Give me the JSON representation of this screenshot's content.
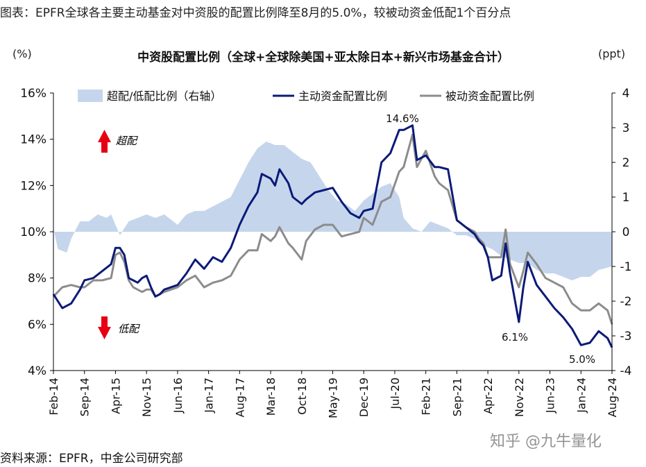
{
  "header": {
    "title": "图表：EPFR全球各主要主动基金对中资股的配置比例降至8月的5.0%，较被动资金低配1个百分点"
  },
  "footer": {
    "source": "资料来源：EPFR，中金公司研究部",
    "watermark": "知乎 @九牛量化"
  },
  "colors": {
    "active": "#0b1a78",
    "passive": "#8c8c8c",
    "area": "#c5d5ec",
    "arrow": "#e60012"
  },
  "chart_data": {
    "type": "line",
    "title": "中资股配置比例（全球+全球除美国+亚太除日本+新兴市场基金合计）",
    "ylabel_left": "(%)",
    "ylabel_right": "(ppt)",
    "ylim_left": [
      4,
      16
    ],
    "ylim_right": [
      -4,
      4
    ],
    "yticks_left": [
      "4%",
      "6%",
      "8%",
      "10%",
      "12%",
      "14%",
      "16%"
    ],
    "yticks_right": [
      "-4",
      "-3",
      "-2",
      "-1",
      "0",
      "1",
      "2",
      "3",
      "4"
    ],
    "x_tick_labels": [
      "Feb-14",
      "Sep-14",
      "Apr-15",
      "Nov-15",
      "Jun-16",
      "Jan-17",
      "Aug-17",
      "Mar-18",
      "Oct-18",
      "May-19",
      "Dec-19",
      "Jul-20",
      "Feb-21",
      "Sep-21",
      "Apr-22",
      "Nov-22",
      "Jun-23",
      "Jan-24",
      "Aug-24"
    ],
    "x_start": "Feb-14",
    "x_end": "Aug-24",
    "legend_position": "top",
    "annotations": {
      "overweight": "超配",
      "underweight": "低配",
      "peak": "14.6%",
      "low_2022": "6.1%",
      "latest": "5.0%"
    },
    "series": [
      {
        "name": "超配/低配比例（右轴）",
        "kind": "area",
        "axis": "right",
        "points": [
          [
            "Feb-14",
            0.1
          ],
          [
            "Mar-14",
            -0.5
          ],
          [
            "May-14",
            -0.6
          ],
          [
            "Jun-14",
            -0.2
          ],
          [
            "Aug-14",
            0.3
          ],
          [
            "Oct-14",
            0.3
          ],
          [
            "Dec-14",
            0.5
          ],
          [
            "Feb-15",
            0.4
          ],
          [
            "Mar-15",
            0.5
          ],
          [
            "May-15",
            -0.1
          ],
          [
            "Jul-15",
            0.3
          ],
          [
            "Sep-15",
            0.4
          ],
          [
            "Nov-15",
            0.5
          ],
          [
            "Jan-16",
            0.4
          ],
          [
            "Mar-16",
            0.5
          ],
          [
            "Jun-16",
            0.2
          ],
          [
            "Aug-16",
            0.5
          ],
          [
            "Oct-16",
            0.6
          ],
          [
            "Dec-16",
            0.6
          ],
          [
            "Mar-17",
            0.8
          ],
          [
            "Jun-17",
            1.0
          ],
          [
            "Aug-17",
            1.5
          ],
          [
            "Oct-17",
            2.0
          ],
          [
            "Dec-17",
            2.4
          ],
          [
            "Feb-18",
            2.6
          ],
          [
            "Apr-18",
            2.5
          ],
          [
            "Jun-18",
            2.5
          ],
          [
            "Aug-18",
            2.3
          ],
          [
            "Oct-18",
            2.1
          ],
          [
            "Dec-18",
            2.0
          ],
          [
            "Feb-19",
            1.6
          ],
          [
            "Apr-19",
            1.2
          ],
          [
            "Jun-19",
            0.9
          ],
          [
            "Aug-19",
            0.8
          ],
          [
            "Oct-19",
            0.6
          ],
          [
            "Dec-19",
            0.9
          ],
          [
            "Feb-20",
            1.1
          ],
          [
            "Apr-20",
            1.3
          ],
          [
            "Jun-20",
            1.4
          ],
          [
            "Aug-20",
            1.0
          ],
          [
            "Sep-20",
            0.4
          ],
          [
            "Nov-20",
            0.1
          ],
          [
            "Jan-21",
            0.0
          ],
          [
            "Mar-21",
            0.3
          ],
          [
            "May-21",
            0.2
          ],
          [
            "Jul-21",
            0.1
          ],
          [
            "Sep-21",
            -0.1
          ],
          [
            "Nov-21",
            -0.1
          ],
          [
            "Jan-22",
            -0.2
          ],
          [
            "Mar-22",
            -0.4
          ],
          [
            "May-22",
            -0.5
          ],
          [
            "Jul-22",
            -0.7
          ],
          [
            "Sep-22",
            -0.8
          ],
          [
            "Nov-22",
            -0.9
          ],
          [
            "Jan-23",
            -0.9
          ],
          [
            "Mar-23",
            -1.1
          ],
          [
            "May-23",
            -1.2
          ],
          [
            "Jul-23",
            -1.2
          ],
          [
            "Sep-23",
            -1.3
          ],
          [
            "Nov-23",
            -1.4
          ],
          [
            "Jan-24",
            -1.3
          ],
          [
            "Mar-24",
            -1.3
          ],
          [
            "May-24",
            -1.1
          ],
          [
            "Aug-24",
            -1.0
          ]
        ]
      },
      {
        "name": "主动资金配置比例",
        "kind": "line",
        "axis": "left",
        "points": [
          [
            "Feb-14",
            7.3
          ],
          [
            "Apr-14",
            6.7
          ],
          [
            "Jun-14",
            6.9
          ],
          [
            "Aug-14",
            7.5
          ],
          [
            "Sep-14",
            7.9
          ],
          [
            "Nov-14",
            8.0
          ],
          [
            "Jan-15",
            8.3
          ],
          [
            "Mar-15",
            8.6
          ],
          [
            "Apr-15",
            9.3
          ],
          [
            "May-15",
            9.3
          ],
          [
            "Jun-15",
            9.0
          ],
          [
            "Jul-15",
            8.0
          ],
          [
            "Aug-15",
            7.9
          ],
          [
            "Sep-15",
            7.8
          ],
          [
            "Oct-15",
            8.0
          ],
          [
            "Nov-15",
            8.1
          ],
          [
            "Dec-15",
            7.6
          ],
          [
            "Jan-16",
            7.2
          ],
          [
            "Feb-16",
            7.3
          ],
          [
            "Mar-16",
            7.5
          ],
          [
            "Jun-16",
            7.7
          ],
          [
            "Aug-16",
            8.2
          ],
          [
            "Oct-16",
            8.8
          ],
          [
            "Dec-16",
            8.4
          ],
          [
            "Feb-17",
            8.9
          ],
          [
            "Apr-17",
            8.7
          ],
          [
            "Jun-17",
            9.3
          ],
          [
            "Aug-17",
            10.3
          ],
          [
            "Oct-17",
            11.1
          ],
          [
            "Dec-17",
            11.7
          ],
          [
            "Jan-18",
            12.5
          ],
          [
            "Mar-18",
            12.3
          ],
          [
            "Apr-18",
            12.0
          ],
          [
            "May-18",
            12.7
          ],
          [
            "Jul-18",
            12.1
          ],
          [
            "Aug-18",
            11.5
          ],
          [
            "Oct-18",
            11.2
          ],
          [
            "Nov-18",
            11.4
          ],
          [
            "Jan-19",
            11.7
          ],
          [
            "Mar-19",
            11.8
          ],
          [
            "May-19",
            11.9
          ],
          [
            "Jul-19",
            11.3
          ],
          [
            "Sep-19",
            10.8
          ],
          [
            "Nov-19",
            10.6
          ],
          [
            "Dec-19",
            10.9
          ],
          [
            "Feb-20",
            11.0
          ],
          [
            "Apr-20",
            13.0
          ],
          [
            "Jun-20",
            13.4
          ],
          [
            "Aug-20",
            14.4
          ],
          [
            "Sep-20",
            14.4
          ],
          [
            "Nov-20",
            14.6
          ],
          [
            "Dec-20",
            13.1
          ],
          [
            "Feb-21",
            13.3
          ],
          [
            "Apr-21",
            12.8
          ],
          [
            "May-21",
            12.8
          ],
          [
            "Jul-21",
            12.7
          ],
          [
            "Sep-21",
            10.5
          ],
          [
            "Nov-21",
            10.2
          ],
          [
            "Jan-22",
            9.9
          ],
          [
            "Feb-22",
            9.6
          ],
          [
            "Mar-22",
            9.4
          ],
          [
            "Apr-22",
            8.9
          ],
          [
            "May-22",
            7.9
          ],
          [
            "Jul-22",
            8.1
          ],
          [
            "Aug-22",
            9.5
          ],
          [
            "Sep-22",
            8.2
          ],
          [
            "Nov-22",
            6.1
          ],
          [
            "Dec-22",
            7.6
          ],
          [
            "Jan-23",
            8.7
          ],
          [
            "Mar-23",
            7.7
          ],
          [
            "May-23",
            7.2
          ],
          [
            "Jul-23",
            6.7
          ],
          [
            "Sep-23",
            6.3
          ],
          [
            "Nov-23",
            5.8
          ],
          [
            "Jan-24",
            5.1
          ],
          [
            "Mar-24",
            5.2
          ],
          [
            "May-24",
            5.7
          ],
          [
            "Jul-24",
            5.4
          ],
          [
            "Aug-24",
            5.0
          ]
        ]
      },
      {
        "name": "被动资金配置比例",
        "kind": "line",
        "axis": "left",
        "points": [
          [
            "Feb-14",
            7.2
          ],
          [
            "Apr-14",
            7.6
          ],
          [
            "Jun-14",
            7.7
          ],
          [
            "Aug-14",
            7.6
          ],
          [
            "Sep-14",
            7.6
          ],
          [
            "Nov-14",
            7.9
          ],
          [
            "Jan-15",
            7.9
          ],
          [
            "Mar-15",
            8.0
          ],
          [
            "Apr-15",
            9.0
          ],
          [
            "May-15",
            9.1
          ],
          [
            "Jun-15",
            8.7
          ],
          [
            "Jul-15",
            7.9
          ],
          [
            "Aug-15",
            7.6
          ],
          [
            "Sep-15",
            7.5
          ],
          [
            "Oct-15",
            7.4
          ],
          [
            "Nov-15",
            7.5
          ],
          [
            "Dec-15",
            7.5
          ],
          [
            "Jan-16",
            7.2
          ],
          [
            "Feb-16",
            7.3
          ],
          [
            "Mar-16",
            7.4
          ],
          [
            "Jun-16",
            7.6
          ],
          [
            "Aug-16",
            7.9
          ],
          [
            "Oct-16",
            8.1
          ],
          [
            "Dec-16",
            7.6
          ],
          [
            "Feb-17",
            7.8
          ],
          [
            "Apr-17",
            7.9
          ],
          [
            "Jun-17",
            8.1
          ],
          [
            "Aug-17",
            8.8
          ],
          [
            "Oct-17",
            9.2
          ],
          [
            "Dec-17",
            9.2
          ],
          [
            "Jan-18",
            9.9
          ],
          [
            "Mar-18",
            9.6
          ],
          [
            "Apr-18",
            9.8
          ],
          [
            "May-18",
            10.2
          ],
          [
            "Jul-18",
            9.5
          ],
          [
            "Aug-18",
            9.3
          ],
          [
            "Oct-18",
            8.8
          ],
          [
            "Nov-18",
            9.6
          ],
          [
            "Jan-19",
            10.1
          ],
          [
            "Mar-19",
            10.3
          ],
          [
            "May-19",
            10.3
          ],
          [
            "Jul-19",
            9.8
          ],
          [
            "Sep-19",
            9.9
          ],
          [
            "Nov-19",
            10.0
          ],
          [
            "Dec-19",
            10.6
          ],
          [
            "Feb-20",
            10.3
          ],
          [
            "Apr-20",
            11.3
          ],
          [
            "Jun-20",
            11.5
          ],
          [
            "Aug-20",
            12.6
          ],
          [
            "Sep-20",
            12.8
          ],
          [
            "Nov-20",
            14.2
          ],
          [
            "Dec-20",
            12.8
          ],
          [
            "Feb-21",
            13.5
          ],
          [
            "Apr-21",
            12.4
          ],
          [
            "May-21",
            12.1
          ],
          [
            "Jul-21",
            11.8
          ],
          [
            "Sep-21",
            10.5
          ],
          [
            "Nov-21",
            10.2
          ],
          [
            "Jan-22",
            10.0
          ],
          [
            "Feb-22",
            9.7
          ],
          [
            "Mar-22",
            9.5
          ],
          [
            "Apr-22",
            8.9
          ],
          [
            "May-22",
            8.9
          ],
          [
            "Jul-22",
            8.9
          ],
          [
            "Aug-22",
            10.1
          ],
          [
            "Sep-22",
            8.6
          ],
          [
            "Nov-22",
            7.6
          ],
          [
            "Dec-22",
            8.3
          ],
          [
            "Jan-23",
            9.1
          ],
          [
            "Mar-23",
            8.6
          ],
          [
            "May-23",
            8.0
          ],
          [
            "Jul-23",
            7.8
          ],
          [
            "Sep-23",
            7.6
          ],
          [
            "Nov-23",
            6.9
          ],
          [
            "Jan-24",
            6.6
          ],
          [
            "Mar-24",
            6.6
          ],
          [
            "May-24",
            6.9
          ],
          [
            "Jul-24",
            6.6
          ],
          [
            "Aug-24",
            6.0
          ]
        ]
      }
    ]
  }
}
